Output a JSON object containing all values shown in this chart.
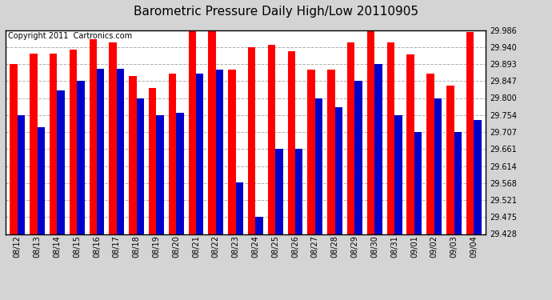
{
  "title": "Barometric Pressure Daily High/Low 20110905",
  "copyright": "Copyright 2011  Cartronics.com",
  "dates": [
    "08/12",
    "08/13",
    "08/14",
    "08/15",
    "08/16",
    "08/17",
    "08/18",
    "08/19",
    "08/20",
    "08/21",
    "08/22",
    "08/23",
    "08/24",
    "08/25",
    "08/26",
    "08/27",
    "08/28",
    "08/29",
    "08/30",
    "08/31",
    "09/01",
    "09/02",
    "09/03",
    "09/04"
  ],
  "highs": [
    29.893,
    29.921,
    29.921,
    29.932,
    29.96,
    29.953,
    29.86,
    29.828,
    29.867,
    29.986,
    29.986,
    29.878,
    29.94,
    29.945,
    29.928,
    29.878,
    29.878,
    29.953,
    29.986,
    29.953,
    29.92,
    29.867,
    29.833,
    29.98
  ],
  "lows": [
    29.754,
    29.72,
    29.82,
    29.847,
    29.88,
    29.88,
    29.8,
    29.753,
    29.76,
    29.867,
    29.878,
    29.57,
    29.475,
    29.66,
    29.66,
    29.8,
    29.775,
    29.847,
    29.893,
    29.753,
    29.707,
    29.8,
    29.707,
    29.74
  ],
  "bar_color_high": "#ff0000",
  "bar_color_low": "#0000cc",
  "background_color": "#d4d4d4",
  "plot_bg_color": "#ffffff",
  "grid_color": "#b0b0b0",
  "ymin": 29.428,
  "ymax": 29.986,
  "yticks": [
    29.428,
    29.475,
    29.521,
    29.568,
    29.614,
    29.661,
    29.707,
    29.754,
    29.8,
    29.847,
    29.893,
    29.94,
    29.986
  ],
  "title_fontsize": 11,
  "copyright_fontsize": 7
}
